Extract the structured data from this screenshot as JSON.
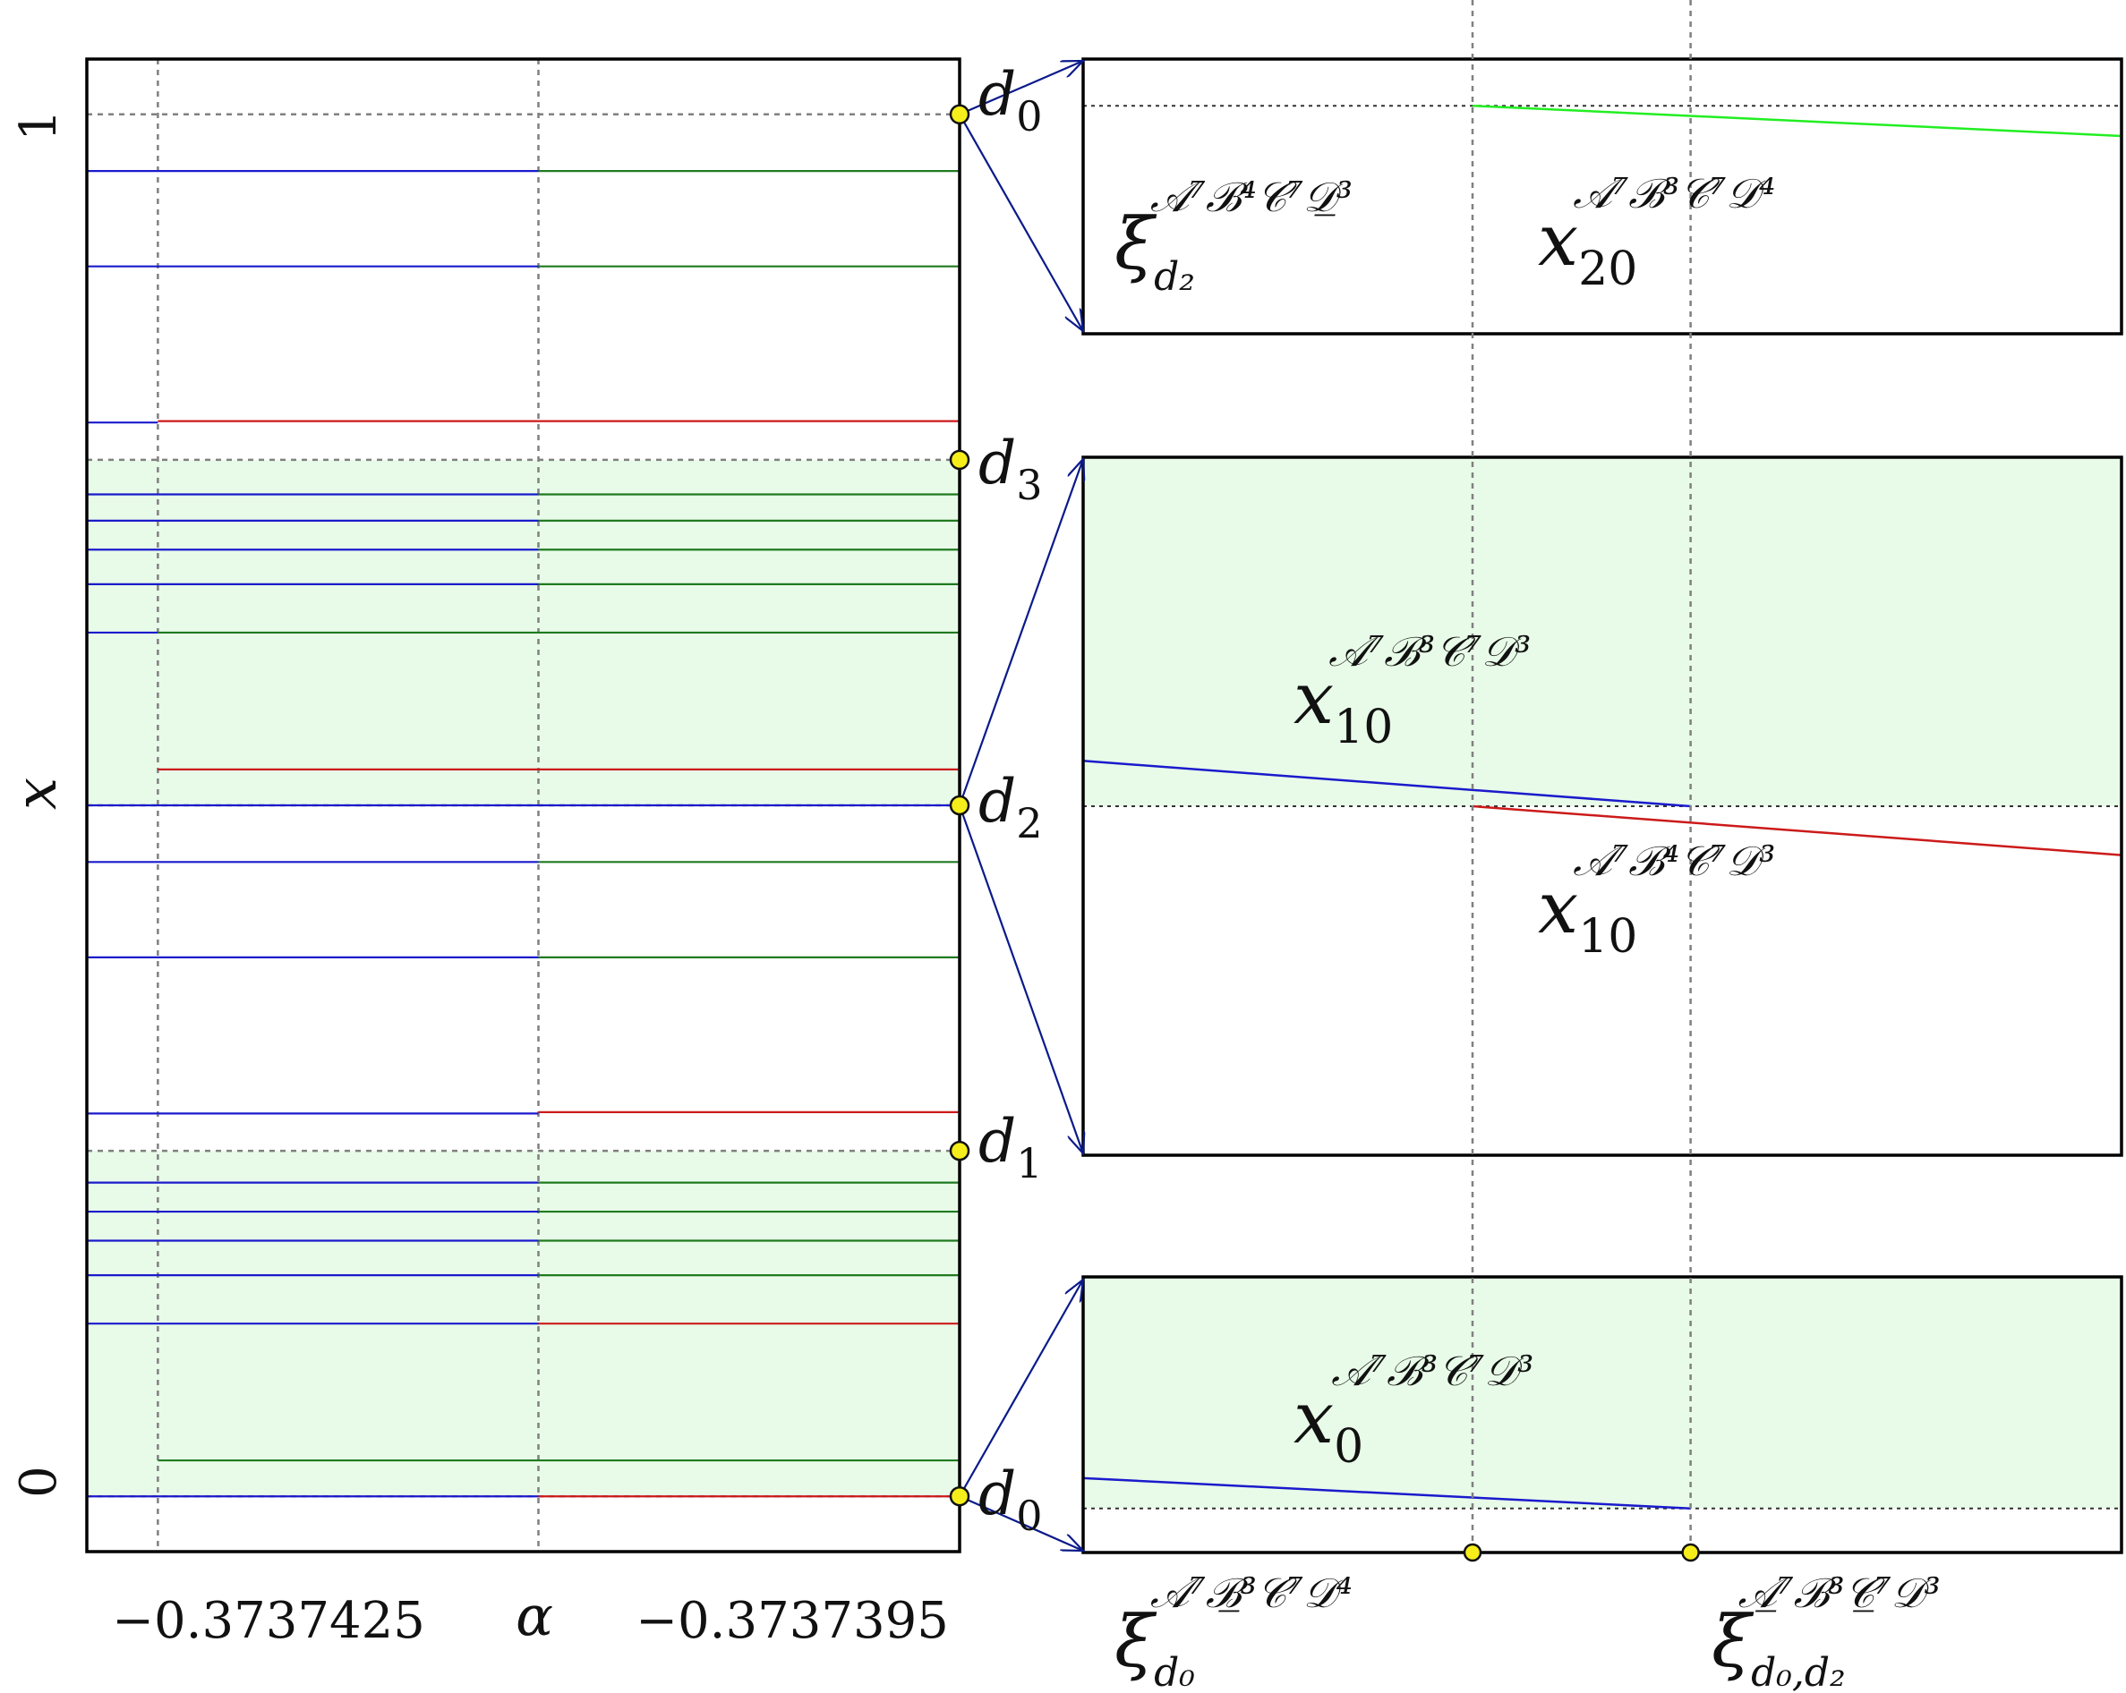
{
  "chart_data": [
    {
      "type": "line",
      "panel": "main",
      "xlabel": "α",
      "ylabel": "x",
      "xtick_labels": [
        "−0.3737425",
        "−0.3737395"
      ],
      "ytick_labels": [
        "0",
        "1"
      ],
      "xlim": [
        -0.37374278,
        -0.37373934
      ],
      "ylim": [
        -0.04,
        1.04
      ],
      "vlines": [
        -0.3737425,
        -0.373741
      ],
      "shaded_bands": [
        [
          0,
          0.25
        ],
        [
          0.5,
          0.75
        ]
      ],
      "points": [
        {
          "label": "d",
          "sub": "0",
          "y": 1
        },
        {
          "label": "d",
          "sub": "3",
          "y": 0.75
        },
        {
          "label": "d",
          "sub": "2",
          "y": 0.5
        },
        {
          "label": "d",
          "sub": "1",
          "y": 0.25
        },
        {
          "label": "d",
          "sub": "0",
          "y": 0
        }
      ],
      "segments": [
        {
          "color": "#1a1acc",
          "y": 0.959,
          "x": [
            -0.37374278,
            -0.373741
          ]
        },
        {
          "color": "#1f7a1f",
          "y": 0.959,
          "x": [
            -0.373741,
            -0.37373934
          ]
        },
        {
          "color": "#1a1acc",
          "y": 0.89,
          "x": [
            -0.37374278,
            -0.373741
          ]
        },
        {
          "color": "#1f7a1f",
          "y": 0.89,
          "x": [
            -0.373741,
            -0.37373934
          ]
        },
        {
          "color": "#1a1acc",
          "y": 0.777,
          "x": [
            -0.37374278,
            -0.3737425
          ]
        },
        {
          "color": "#cc1a1a",
          "y": 0.778,
          "x": [
            -0.3737425,
            -0.37373934
          ]
        },
        {
          "color": "#1a1acc",
          "y": 0.725,
          "x": [
            -0.37374278,
            -0.373741
          ]
        },
        {
          "color": "#1f7a1f",
          "y": 0.725,
          "x": [
            -0.373741,
            -0.37373934
          ]
        },
        {
          "color": "#1a1acc",
          "y": 0.706,
          "x": [
            -0.37374278,
            -0.373741
          ]
        },
        {
          "color": "#1f7a1f",
          "y": 0.706,
          "x": [
            -0.373741,
            -0.37373934
          ]
        },
        {
          "color": "#1a1acc",
          "y": 0.685,
          "x": [
            -0.37374278,
            -0.373741
          ]
        },
        {
          "color": "#1f7a1f",
          "y": 0.685,
          "x": [
            -0.373741,
            -0.37373934
          ]
        },
        {
          "color": "#1a1acc",
          "y": 0.66,
          "x": [
            -0.37374278,
            -0.373741
          ]
        },
        {
          "color": "#1f7a1f",
          "y": 0.66,
          "x": [
            -0.373741,
            -0.37373934
          ]
        },
        {
          "color": "#1a1acc",
          "y": 0.625,
          "x": [
            -0.37374278,
            -0.3737425
          ]
        },
        {
          "color": "#1f7a1f",
          "y": 0.625,
          "x": [
            -0.3737425,
            -0.37373934
          ]
        },
        {
          "color": "#cc1a1a",
          "y": 0.526,
          "x": [
            -0.3737425,
            -0.37373934
          ]
        },
        {
          "color": "#1a1acc",
          "y": 0.5,
          "x": [
            -0.37374278,
            -0.37373934
          ]
        },
        {
          "color": "#1a1acc",
          "y": 0.459,
          "x": [
            -0.37374278,
            -0.373741
          ]
        },
        {
          "color": "#1f7a1f",
          "y": 0.459,
          "x": [
            -0.373741,
            -0.37373934
          ]
        },
        {
          "color": "#1a1acc",
          "y": 0.39,
          "x": [
            -0.37374278,
            -0.373741
          ]
        },
        {
          "color": "#1f7a1f",
          "y": 0.39,
          "x": [
            -0.373741,
            -0.37373934
          ]
        },
        {
          "color": "#1a1acc",
          "y": 0.277,
          "x": [
            -0.37374278,
            -0.373741
          ]
        },
        {
          "color": "#cc1a1a",
          "y": 0.278,
          "x": [
            -0.373741,
            -0.37373934
          ]
        },
        {
          "color": "#1a1acc",
          "y": 0.227,
          "x": [
            -0.37374278,
            -0.373741
          ]
        },
        {
          "color": "#1f7a1f",
          "y": 0.227,
          "x": [
            -0.373741,
            -0.37373934
          ]
        },
        {
          "color": "#1a1acc",
          "y": 0.206,
          "x": [
            -0.37374278,
            -0.373741
          ]
        },
        {
          "color": "#1f7a1f",
          "y": 0.206,
          "x": [
            -0.373741,
            -0.37373934
          ]
        },
        {
          "color": "#1a1acc",
          "y": 0.185,
          "x": [
            -0.37374278,
            -0.373741
          ]
        },
        {
          "color": "#1f7a1f",
          "y": 0.185,
          "x": [
            -0.373741,
            -0.37373934
          ]
        },
        {
          "color": "#1a1acc",
          "y": 0.16,
          "x": [
            -0.37374278,
            -0.373741
          ]
        },
        {
          "color": "#1f7a1f",
          "y": 0.16,
          "x": [
            -0.373741,
            -0.37373934
          ]
        },
        {
          "color": "#1a1acc",
          "y": 0.125,
          "x": [
            -0.37374278,
            -0.373741
          ]
        },
        {
          "color": "#cc1a1a",
          "y": 0.125,
          "x": [
            -0.373741,
            -0.37373934
          ]
        },
        {
          "color": "#1f7a1f",
          "y": 0.026,
          "x": [
            -0.3737425,
            -0.37373934
          ]
        },
        {
          "color": "#1a1acc",
          "y": 0.0,
          "x": [
            -0.37374278,
            -0.373741
          ]
        },
        {
          "color": "#cc1a1a",
          "y": 0.0,
          "x": [
            -0.373741,
            -0.37373934
          ]
        }
      ]
    },
    {
      "type": "line",
      "panel": "zoom-top",
      "target": "d0",
      "xlim": [
        0,
        1
      ],
      "ylim": [
        0,
        1
      ],
      "shaded": false,
      "reference_y": 0.83,
      "lines": [
        {
          "color": "#22ee22",
          "x": [
            0.375,
            1.0
          ],
          "y": [
            0.83,
            0.72
          ]
        }
      ],
      "labels": [
        {
          "base": "ξ",
          "sub": "d₂",
          "sup": "𝒜⁷ℬ⁴𝒞⁷𝒟̲³"
        },
        {
          "base": "x",
          "sub": "20",
          "sup": "𝒜⁷ℬ³𝒞⁷𝒟⁴"
        }
      ]
    },
    {
      "type": "line",
      "panel": "zoom-middle",
      "target": "d2",
      "xlim": [
        0,
        1
      ],
      "ylim": [
        0,
        1
      ],
      "shaded_above_reference": true,
      "reference_y": 0.5,
      "lines": [
        {
          "color": "#1a1acc",
          "x": [
            0.0,
            0.585
          ],
          "y": [
            0.565,
            0.5
          ]
        },
        {
          "color": "#cc1a1a",
          "x": [
            0.375,
            1.0
          ],
          "y": [
            0.5,
            0.43
          ]
        }
      ],
      "labels": [
        {
          "base": "x",
          "sub": "10",
          "sup": "𝒜⁷ℬ³𝒞⁷𝒟³"
        },
        {
          "base": "x",
          "sub": "10",
          "sup": "𝒜⁷ℬ⁴𝒞⁷𝒟³"
        }
      ]
    },
    {
      "type": "line",
      "panel": "zoom-bottom",
      "target": "d0",
      "xlim": [
        0,
        1
      ],
      "ylim": [
        0,
        1
      ],
      "shaded_above_reference": true,
      "reference_y": 0.16,
      "lines": [
        {
          "color": "#1a1acc",
          "x": [
            0.0,
            0.585
          ],
          "y": [
            0.27,
            0.16
          ]
        }
      ],
      "labels": [
        {
          "base": "x",
          "sub": "0",
          "sup": "𝒜⁷ℬ³𝒞⁷𝒟³"
        }
      ],
      "marker_points": [
        0.375,
        0.585
      ],
      "point_labels": [
        {
          "base": "ξ",
          "sub": "d₀",
          "sup": "𝒜⁷ℬ̲³𝒞⁷𝒟⁴"
        },
        {
          "base": "ξ",
          "sub": "d₀,d₂",
          "sup": "𝒜̲⁷ℬ³𝒞̲⁷𝒟³"
        }
      ]
    }
  ]
}
